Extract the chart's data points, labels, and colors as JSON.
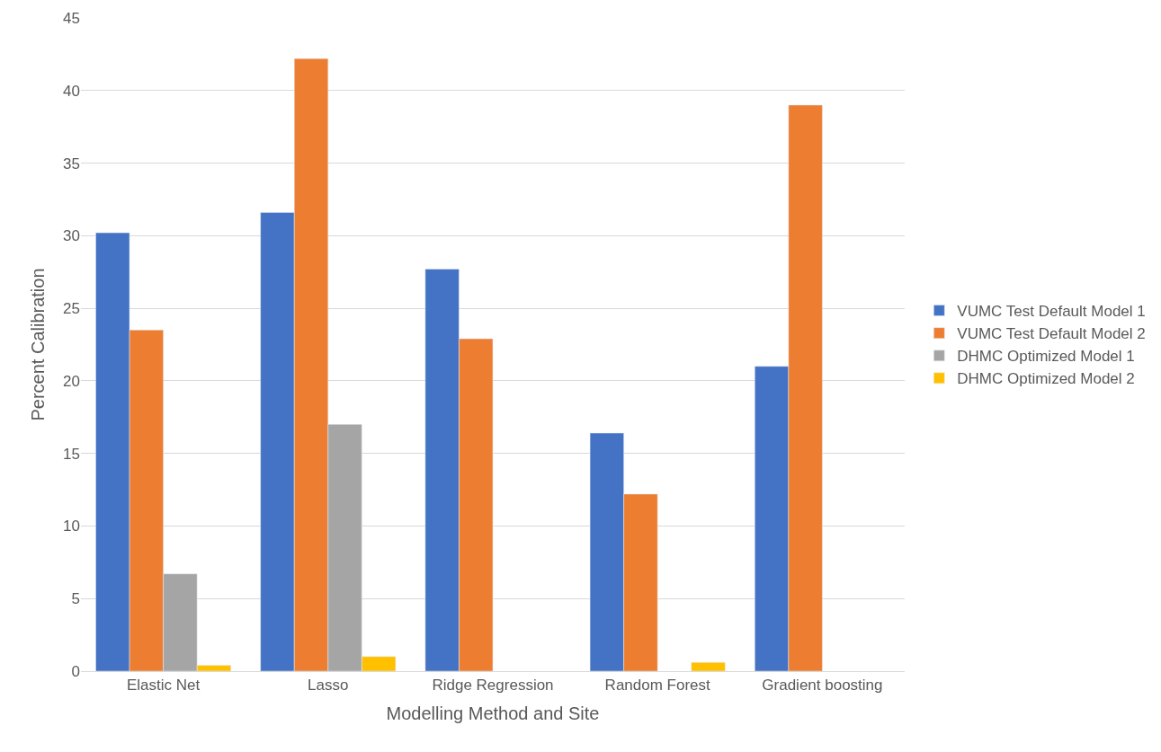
{
  "chart_data": {
    "type": "bar",
    "xlabel": "Modelling Method and Site",
    "ylabel": "Percent Calibration",
    "categories": [
      "Elastic Net",
      "Lasso",
      "Ridge Regression",
      "Random Forest",
      "Gradient boosting"
    ],
    "series": [
      {
        "name": "VUMC Test Default Model 1",
        "color": "#4472c4",
        "values": [
          30.2,
          31.6,
          27.7,
          16.4,
          21.0
        ]
      },
      {
        "name": "VUMC Test Default Model 2",
        "color": "#ed7d31",
        "values": [
          23.5,
          42.2,
          22.9,
          12.2,
          39.0
        ]
      },
      {
        "name": "DHMC Optimized Model 1",
        "color": "#a5a5a5",
        "values": [
          6.7,
          17.0,
          null,
          null,
          null
        ]
      },
      {
        "name": "DHMC Optimized Model 2",
        "color": "#ffc000",
        "values": [
          0.4,
          1.0,
          null,
          0.6,
          null
        ]
      }
    ],
    "ylim": [
      0,
      45
    ],
    "yticks": [
      0,
      5,
      10,
      15,
      20,
      25,
      30,
      35,
      40,
      45
    ],
    "grid": "y",
    "legend": "right"
  }
}
